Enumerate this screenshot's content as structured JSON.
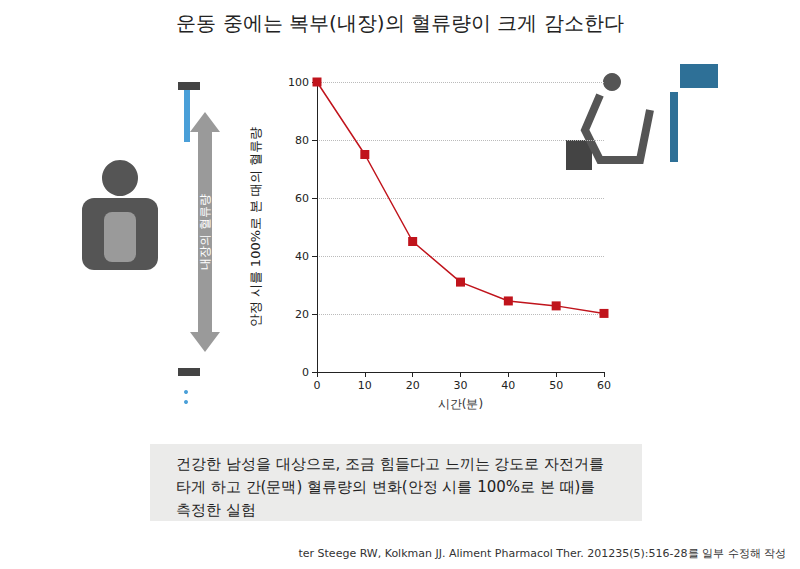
{
  "chart_data": {
    "type": "line",
    "title": "운동 중에는 복부(내장)의 혈류량이 크게 감소한다",
    "x_label": "시간(분)",
    "y_label": "안정 시를 100%로 본 때의 혈류량",
    "x": [
      0,
      10,
      20,
      30,
      40,
      50,
      60
    ],
    "values": [
      100,
      75,
      45,
      31,
      24.5,
      22.8,
      20.2
    ],
    "color": "#c0141c",
    "marker": "square",
    "xlim": [
      0,
      60
    ],
    "xticks": [
      0,
      10,
      20,
      30,
      40,
      50,
      60
    ],
    "ylim": [
      0,
      100
    ],
    "yticks": [
      0,
      20,
      40,
      60,
      80,
      100
    ],
    "grid": true,
    "annotations": [
      "내장의 혈류량"
    ],
    "note": [
      "건강한 남성을 대상으로, 조금 힘들다고 느끼는 강도로 자전거를",
      "타게 하고 간(문맥) 혈류량의 변화(안정 시를 100%로 본 때)를",
      "측정한 실험"
    ],
    "source": "ter Steege RW, Kolkman JJ. Aliment Pharmacol Ther. 201235(5):516-28를 일부 수정해 작성"
  }
}
